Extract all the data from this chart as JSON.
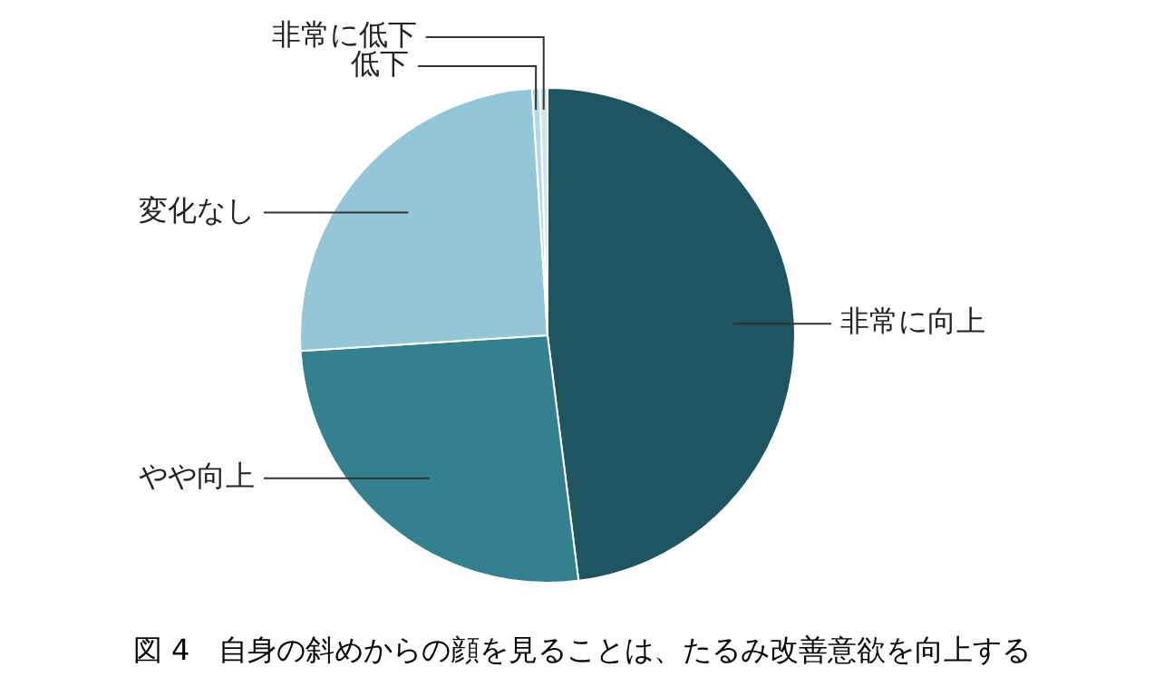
{
  "chart_data": {
    "type": "pie",
    "title": "図 4　自身の斜めからの顔を見ることは、たるみ改善意欲を向上する",
    "categories": [
      "非常に向上",
      "やや向上",
      "変化なし",
      "低下",
      "非常に低下"
    ],
    "values": [
      48,
      26,
      25,
      0.5,
      0.5
    ],
    "colors": [
      "#1f5561",
      "#33808f",
      "#93c6d6",
      "#b5d8e3",
      "#cfe6ee"
    ],
    "legend": false
  }
}
